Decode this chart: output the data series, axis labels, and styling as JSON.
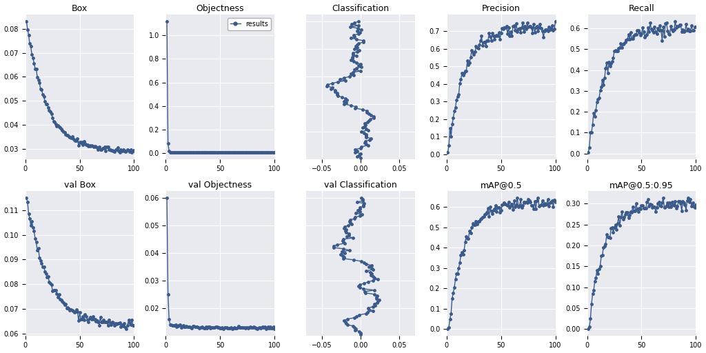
{
  "titles": [
    "Box",
    "Objectness",
    "Classification",
    "Precision",
    "Recall",
    "val Box",
    "val Objectness",
    "val Classification",
    "mAP@0.5",
    "mAP@0.5:0.95"
  ],
  "line_color": "#3A5A8C",
  "bg_color": "#E8EAF0",
  "fig_bg_color": "#FFFFFF",
  "legend_label": "results",
  "marker": "o",
  "markersize": 2.5,
  "linewidth": 1.0,
  "n_epochs": 100,
  "xticks": [
    0,
    50,
    100
  ]
}
